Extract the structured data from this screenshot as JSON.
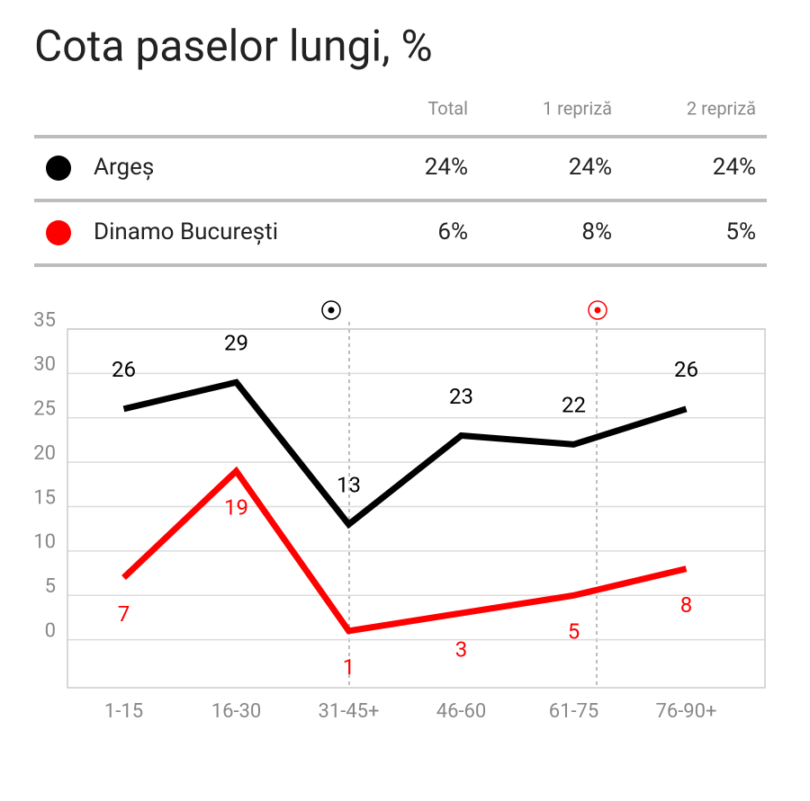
{
  "title": "Cota paselor lungi, %",
  "table": {
    "columns": [
      "Total",
      "1 repriză",
      "2 repriză"
    ],
    "rows": [
      {
        "team": "Argeș",
        "color": "#000000",
        "values": [
          "24%",
          "24%",
          "24%"
        ]
      },
      {
        "team": "Dinamo București",
        "color": "#ff0000",
        "values": [
          "6%",
          "8%",
          "5%"
        ]
      }
    ]
  },
  "chart_data": {
    "type": "line",
    "categories": [
      "1-15",
      "16-30",
      "31-45+",
      "46-60",
      "61-75",
      "76-90+"
    ],
    "series": [
      {
        "name": "Argeș",
        "color": "#000000",
        "values": [
          26,
          29,
          13,
          23,
          22,
          26
        ]
      },
      {
        "name": "Dinamo București",
        "color": "#ff0000",
        "values": [
          7,
          19,
          1,
          3,
          5,
          8
        ]
      }
    ],
    "ylim": [
      -5.4,
      35
    ],
    "yticks": [
      0,
      5,
      10,
      15,
      20,
      25,
      30,
      35
    ],
    "grid": true
  }
}
